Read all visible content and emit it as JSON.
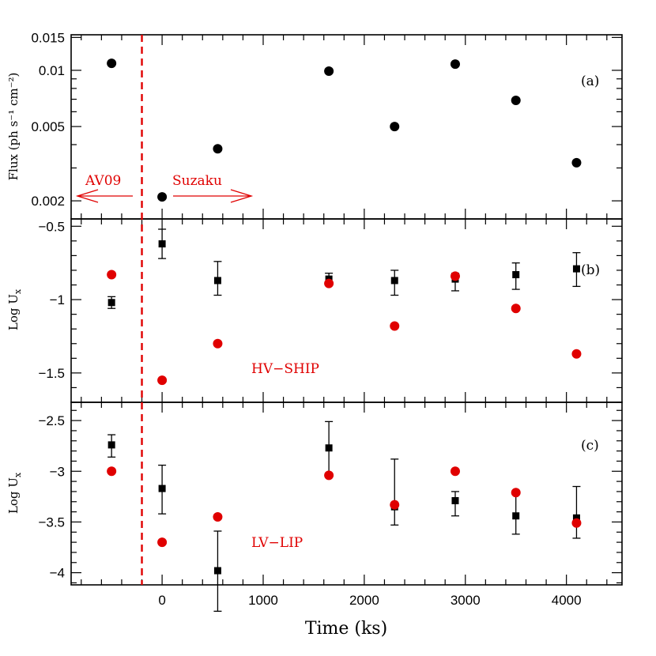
{
  "chart_data": {
    "type": "scatter",
    "xlabel": "Time (ks)",
    "x_ticks": [
      0,
      1000,
      2000,
      3000,
      4000
    ],
    "xlim": [
      -900,
      4550
    ],
    "marker_time": -200,
    "annotations": {
      "left": "AV09",
      "right": "Suzaku"
    },
    "panels": [
      {
        "tag": "(a)",
        "ylabel": "Flux (ph s⁻¹ cm⁻²)",
        "yscale": "log",
        "ylim": [
          0.0016,
          0.0155
        ],
        "y_ticks": [
          0.002,
          0.005,
          0.01,
          0.015
        ],
        "y_tick_labels": [
          "0.002",
          "0.005",
          "0.01",
          "0.015"
        ],
        "series": [
          {
            "marker": "circle",
            "color": "#000000",
            "x": [
              -500,
              0,
              550,
              1650,
              2300,
              2900,
              3500,
              4100
            ],
            "y": [
              0.0109,
              0.0021,
              0.0038,
              0.0099,
              0.005,
              0.0108,
              0.0069,
              0.0032
            ]
          }
        ]
      },
      {
        "tag": "(b)",
        "label": "HV−SHIP",
        "ylabel": "Log U",
        "ylabel_sub": "x",
        "yscale": "linear",
        "ylim": [
          -1.7,
          -0.45
        ],
        "y_ticks": [
          -1.5,
          -1.0,
          -0.5
        ],
        "y_tick_labels": [
          "−1.5",
          "−1",
          "−0.5"
        ],
        "series": [
          {
            "marker": "square",
            "color": "#000000",
            "x": [
              -500,
              0,
              550,
              1650,
              2300,
              2900,
              3500,
              4100
            ],
            "y": [
              -1.02,
              -0.62,
              -0.87,
              -0.86,
              -0.87,
              -0.86,
              -0.83,
              -0.79
            ],
            "err_lo": [
              0.04,
              0.1,
              0.1,
              0.04,
              0.1,
              0.08,
              0.1,
              0.12
            ],
            "err_hi": [
              0.04,
              0.1,
              0.13,
              0.04,
              0.07,
              0.04,
              0.08,
              0.11
            ]
          },
          {
            "marker": "circle",
            "color": "#e00000",
            "x": [
              -500,
              0,
              550,
              1650,
              2300,
              2900,
              3500,
              4100
            ],
            "y": [
              -0.83,
              -1.55,
              -1.3,
              -0.89,
              -1.18,
              -0.84,
              -1.06,
              -1.37
            ]
          }
        ]
      },
      {
        "tag": "(c)",
        "label": "LV−LIP",
        "ylabel": "Log U",
        "ylabel_sub": "x",
        "yscale": "linear",
        "ylim": [
          -4.12,
          -2.32
        ],
        "y_ticks": [
          -4.0,
          -3.5,
          -3.0,
          -2.5
        ],
        "y_tick_labels": [
          "−4",
          "−3.5",
          "−3",
          "−2.5"
        ],
        "series": [
          {
            "marker": "square",
            "color": "#000000",
            "x": [
              -500,
              0,
              550,
              1650,
              2300,
              2900,
              3500,
              4100
            ],
            "y": [
              -2.74,
              -3.17,
              -3.98,
              -2.77,
              -3.35,
              -3.29,
              -3.44,
              -3.46
            ],
            "err_lo": [
              0.12,
              0.25,
              0.4,
              0.27,
              0.18,
              0.15,
              0.18,
              0.2
            ],
            "err_hi": [
              0.1,
              0.23,
              0.39,
              0.26,
              0.47,
              0.09,
              0.24,
              0.31
            ]
          },
          {
            "marker": "circle",
            "color": "#e00000",
            "x": [
              -500,
              0,
              550,
              1650,
              2300,
              2900,
              3500,
              4100
            ],
            "y": [
              -3.0,
              -3.7,
              -3.45,
              -3.04,
              -3.33,
              -3.0,
              -3.21,
              -3.51
            ]
          }
        ]
      }
    ]
  }
}
